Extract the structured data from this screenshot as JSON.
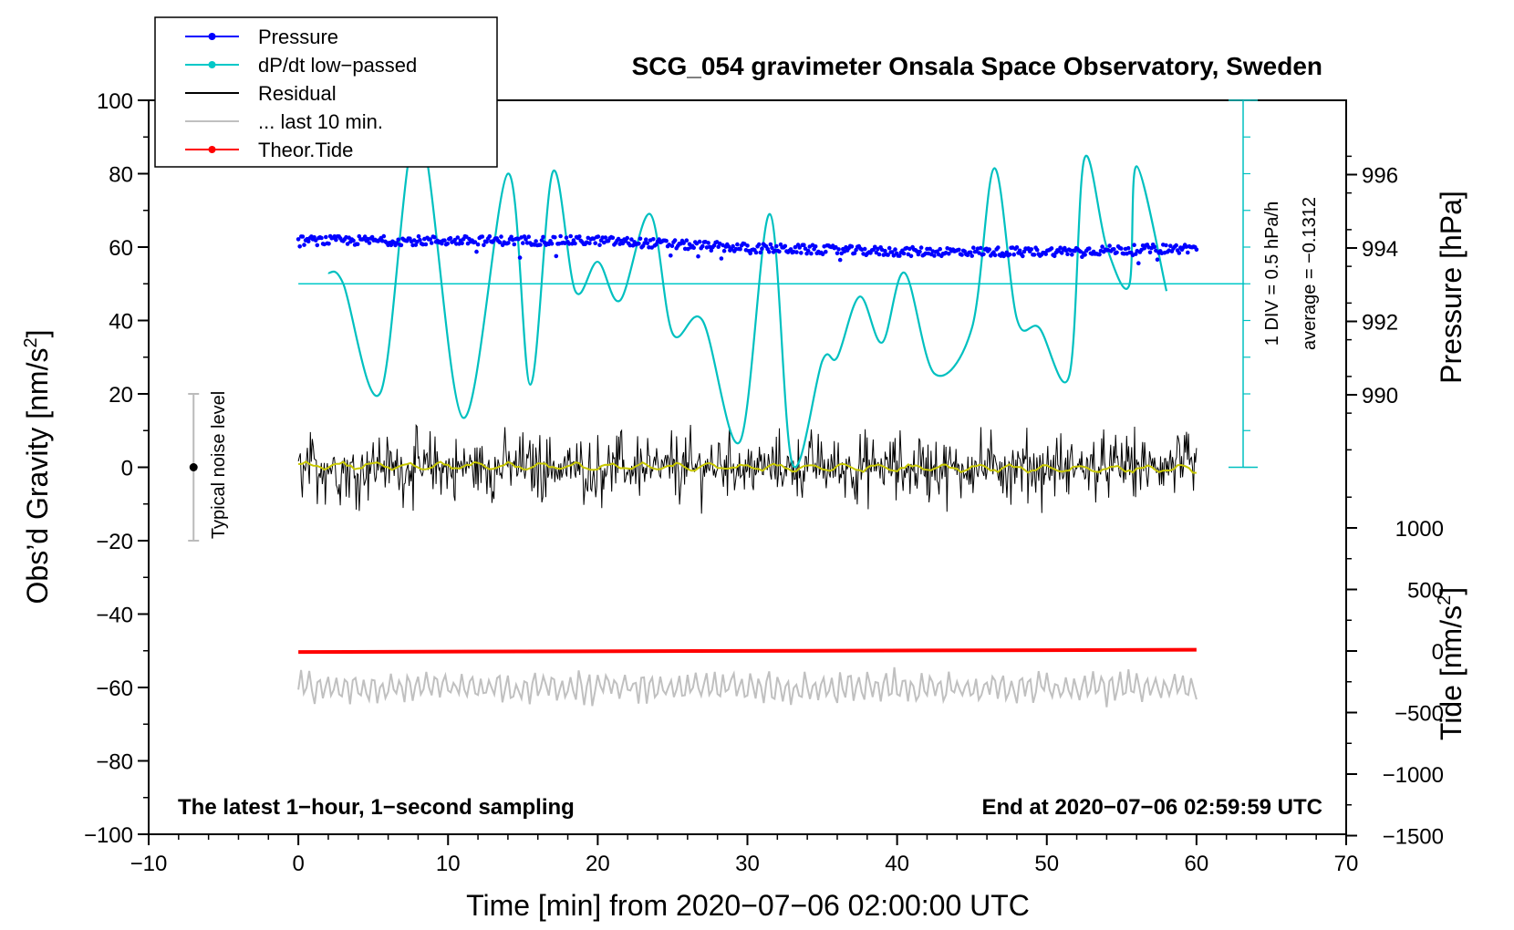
{
  "chart_data": {
    "type": "line",
    "title": "SCG_054 gravimeter Onsala Space Observatory, Sweden",
    "xlabel": "Time [min] from 2020−07−06 02:00:00 UTC",
    "ylabel": "Obs’d Gravity [nm/s",
    "ylabel_sup": "2",
    "ylabel_end": "]",
    "y2label": "Pressure [hPa]",
    "y3label": "Tide [nm/s",
    "y3label_sup": "2",
    "y3label_end": "]",
    "xlim": [
      -10,
      70
    ],
    "ylim": [
      -100,
      100
    ],
    "x_ticks": [
      "−10",
      "0",
      "10",
      "20",
      "30",
      "40",
      "50",
      "60",
      "70"
    ],
    "y_ticks": [
      "100",
      "80",
      "60",
      "40",
      "20",
      "0",
      "−20",
      "−40",
      "−60",
      "−80",
      "−100"
    ],
    "pressure_ticks": [
      "996",
      "994",
      "992",
      "990"
    ],
    "tide_ticks": [
      "1000",
      "500",
      "0",
      "−500",
      "−1000",
      "−1500"
    ],
    "legend": [
      {
        "label": "Pressure",
        "color": "#0000ff",
        "marker": true
      },
      {
        "label": "dP/dt low−passed",
        "color": "#00c8c8",
        "marker": true
      },
      {
        "label": "Residual",
        "color": "#000000",
        "marker": false
      },
      {
        "label": "... last 10 min.",
        "color": "#c0c0c0",
        "marker": false
      },
      {
        "label": "Theor.Tide",
        "color": "#ff0000",
        "marker": true
      }
    ],
    "series": [
      {
        "name": "Pressure",
        "unit": "hPa",
        "x": [
          0,
          10,
          20,
          30,
          40,
          50,
          60
        ],
        "values": [
          994.2,
          994.2,
          994.2,
          994.0,
          993.9,
          993.9,
          994.0
        ]
      },
      {
        "name": "dP/dt low−passed",
        "unit": "hPa/h (avg −0.1312)",
        "x": [
          2,
          3,
          5.5,
          8,
          11,
          14,
          15.5,
          17,
          18.5,
          20,
          21.5,
          23.5,
          25,
          27,
          29.5,
          31.5,
          33,
          35,
          36,
          37.5,
          39,
          40.5,
          42.5,
          45,
          46.5,
          48,
          49.5,
          51.5,
          52.5,
          54,
          55.5,
          56,
          58
        ],
        "values": [
          53,
          50,
          20.5,
          93,
          13.5,
          80,
          22.5,
          80.5,
          48,
          56,
          45.5,
          69,
          36.5,
          40,
          7,
          69,
          1,
          29,
          30,
          46.5,
          34,
          53,
          25.5,
          38,
          81.5,
          40.5,
          38,
          25,
          84,
          60,
          49.5,
          82,
          48
        ]
      },
      {
        "name": "Residual",
        "unit": "nm/s²",
        "x": [
          0,
          60
        ],
        "values": [
          0,
          0
        ],
        "range": [
          -16,
          13
        ]
      },
      {
        "name": "... last 10 min.",
        "unit": "nm/s²",
        "x": [
          0,
          60
        ],
        "values": [
          -60,
          -60
        ],
        "range": [
          -74,
          -52
        ]
      },
      {
        "name": "Theor.Tide",
        "unit": "nm/s²",
        "x": [
          0,
          60
        ],
        "values": [
          0,
          0
        ]
      }
    ],
    "noise_marker": {
      "x": -7,
      "y": 0,
      "range": [
        -20,
        20
      ],
      "label": "Typical noise level"
    },
    "scale_bar": {
      "div_label": "1 DIV = 0.5 hPa/h",
      "avg_label": "average = −0.1312"
    },
    "bottom_left_note": "The latest 1−hour, 1−second sampling",
    "bottom_right_note": "End at 2020−07−06 02:59:59 UTC"
  }
}
